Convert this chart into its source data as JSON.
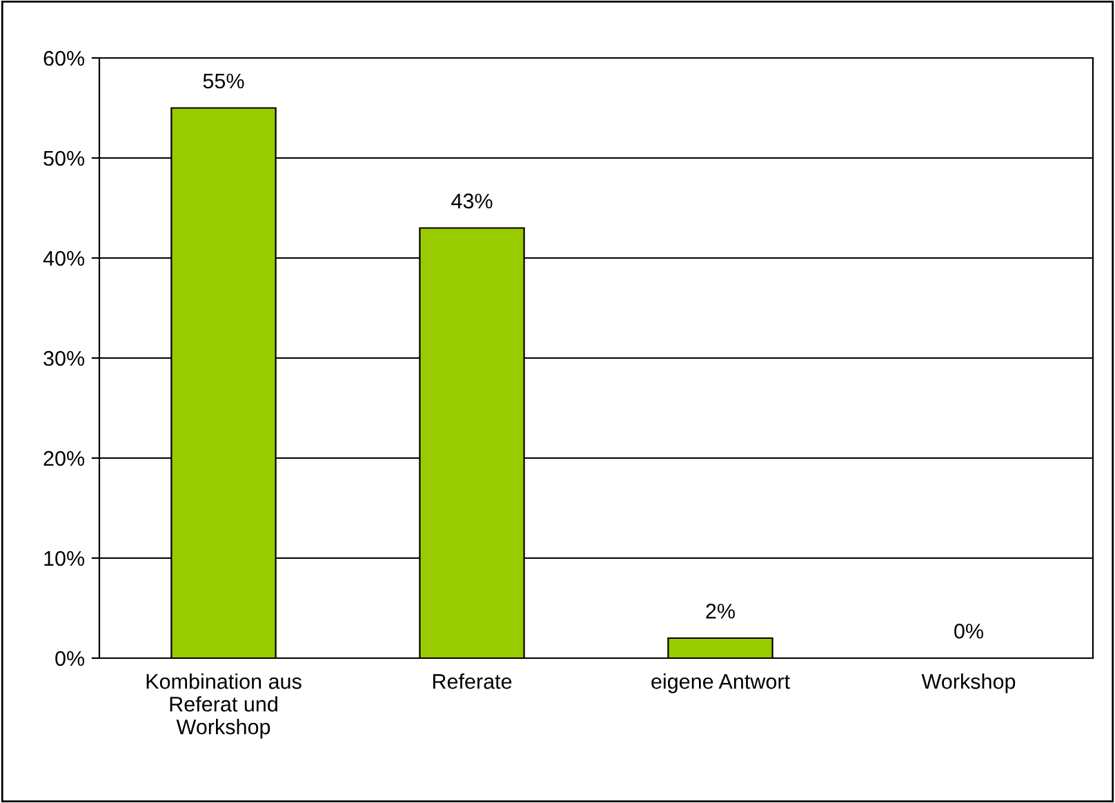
{
  "chart_data": {
    "type": "bar",
    "categories": [
      "Kombination aus\nReferat und\nWorkshop",
      "Referate",
      "eigene Antwort",
      "Workshop"
    ],
    "values": [
      55,
      43,
      2,
      0
    ],
    "value_labels": [
      "55%",
      "43%",
      "2%",
      "0%"
    ],
    "color": "#99cc00",
    "ylim": [
      0,
      60
    ],
    "yticks": [
      {
        "value": 0,
        "label": "0%"
      },
      {
        "value": 10,
        "label": "10%"
      },
      {
        "value": 20,
        "label": "20%"
      },
      {
        "value": 30,
        "label": "30%"
      },
      {
        "value": 40,
        "label": "40%"
      },
      {
        "value": 50,
        "label": "50%"
      },
      {
        "value": 60,
        "label": "60%"
      }
    ],
    "grid": "y"
  }
}
